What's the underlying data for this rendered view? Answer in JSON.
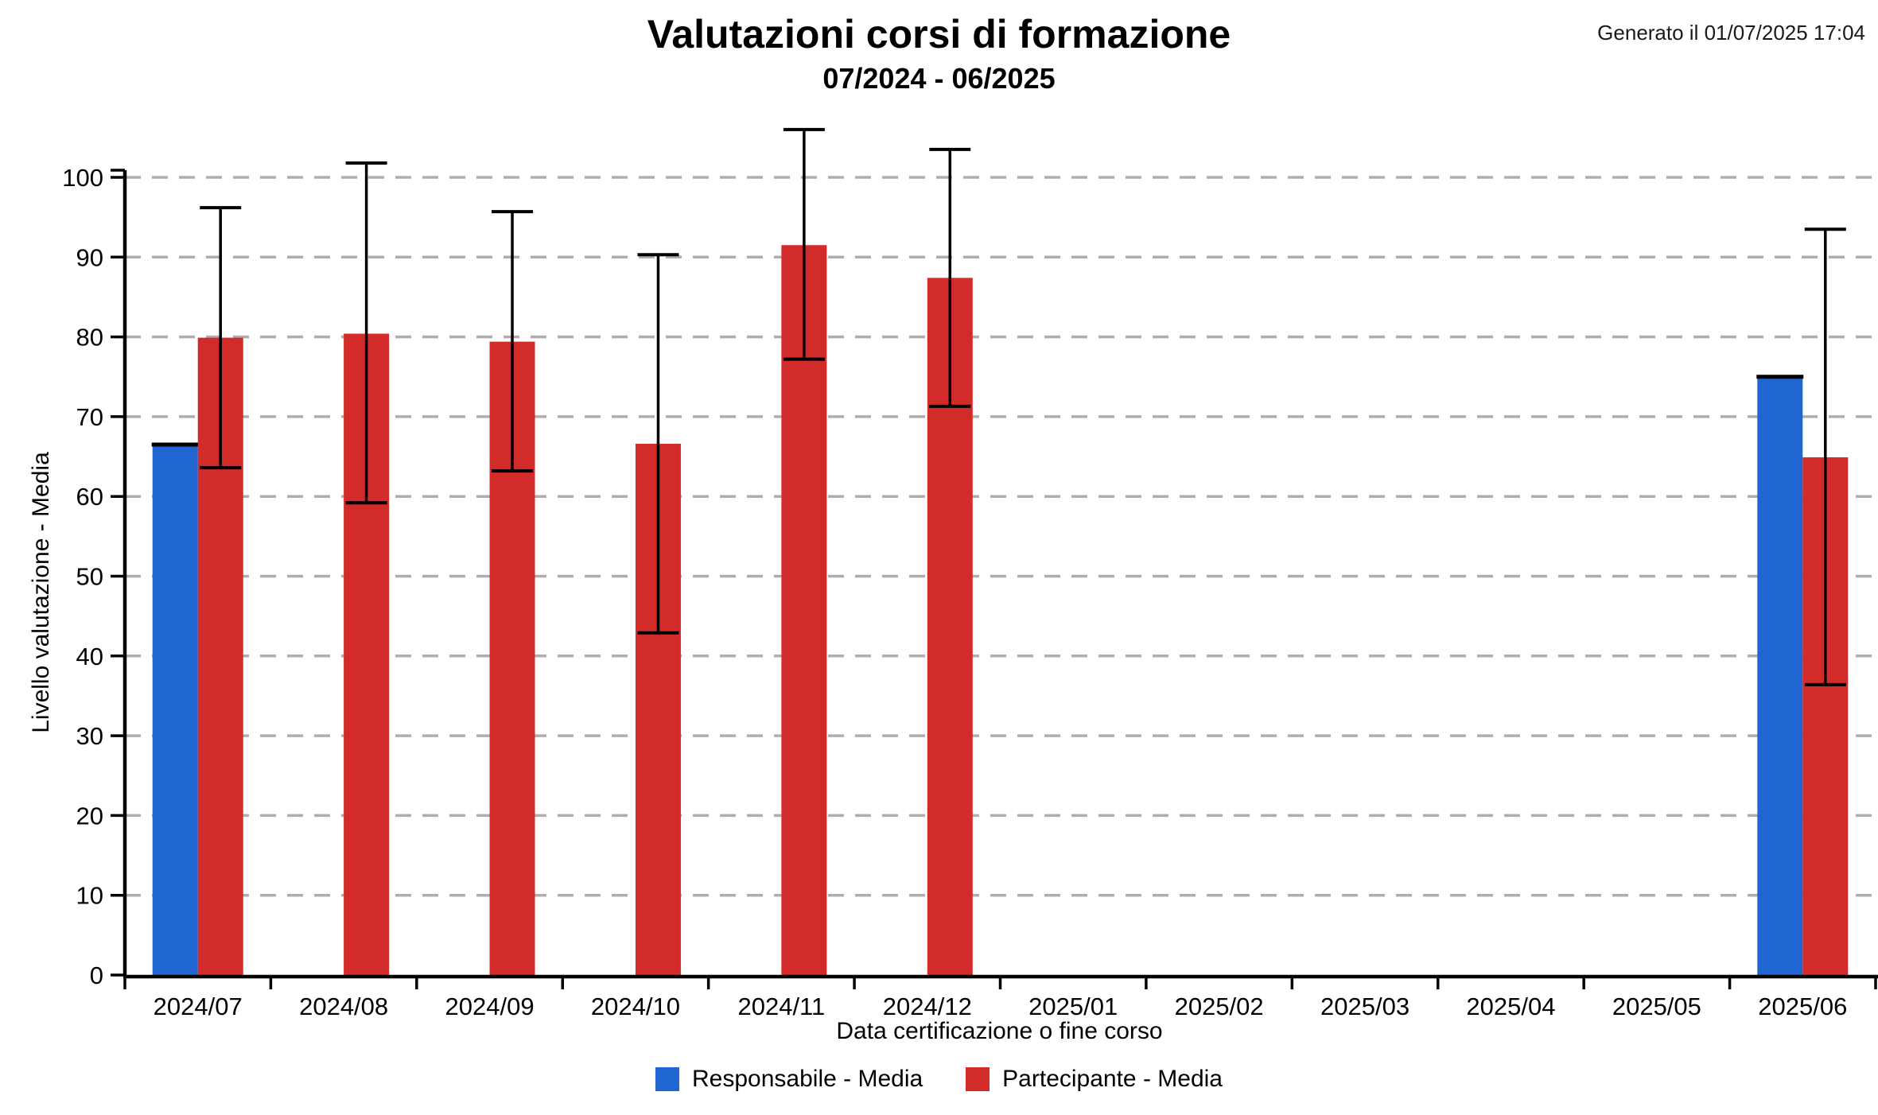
{
  "header": {
    "title": "Valutazioni corsi di formazione",
    "subtitle": "07/2024 - 06/2025",
    "generated": "Generato il 01/07/2025 17:04"
  },
  "axes": {
    "x_title": "Data certificazione o fine corso",
    "y_title": "Livello valutazione - Media"
  },
  "legend": {
    "items": [
      {
        "label": "Responsabile - Media",
        "color": "#2066d2"
      },
      {
        "label": "Partecipante - Media",
        "color": "#d32a2a"
      }
    ]
  },
  "colors": {
    "responsabile_blue": "#2066d2",
    "partecipante_red": "#d32a2a",
    "gridline_gray": "#aeaeae",
    "axis_black": "#000000"
  },
  "chart_data": {
    "type": "bar",
    "title": "Valutazioni corsi di formazione",
    "subtitle": "07/2024 - 06/2025",
    "xlabel": "Data certificazione o fine corso",
    "ylabel": "Livello valutazione - Media",
    "ylim": [
      0,
      100
    ],
    "ytick_step": 10,
    "yticks": [
      0,
      10,
      20,
      30,
      40,
      50,
      60,
      70,
      80,
      90,
      100
    ],
    "grid": "horizontal dashed",
    "legend_position": "bottom",
    "categories": [
      "2024/07",
      "2024/08",
      "2024/09",
      "2024/10",
      "2024/11",
      "2024/12",
      "2025/01",
      "2025/02",
      "2025/03",
      "2025/04",
      "2025/05",
      "2025/06"
    ],
    "series": [
      {
        "name": "Responsabile - Media",
        "color": "#2066d2",
        "values": [
          66.5,
          null,
          null,
          null,
          null,
          null,
          null,
          null,
          null,
          null,
          null,
          75.0
        ],
        "top_cap": true
      },
      {
        "name": "Partecipante - Media",
        "color": "#d32a2a",
        "values": [
          79.9,
          80.4,
          79.4,
          66.6,
          91.5,
          87.4,
          null,
          null,
          null,
          null,
          null,
          64.9
        ],
        "error_low": [
          63.6,
          59.2,
          63.2,
          42.9,
          77.2,
          71.3,
          null,
          null,
          null,
          null,
          null,
          36.4
        ],
        "error_high": [
          96.2,
          101.8,
          95.7,
          90.3,
          106.0,
          103.5,
          null,
          null,
          null,
          null,
          null,
          93.5
        ]
      }
    ]
  }
}
